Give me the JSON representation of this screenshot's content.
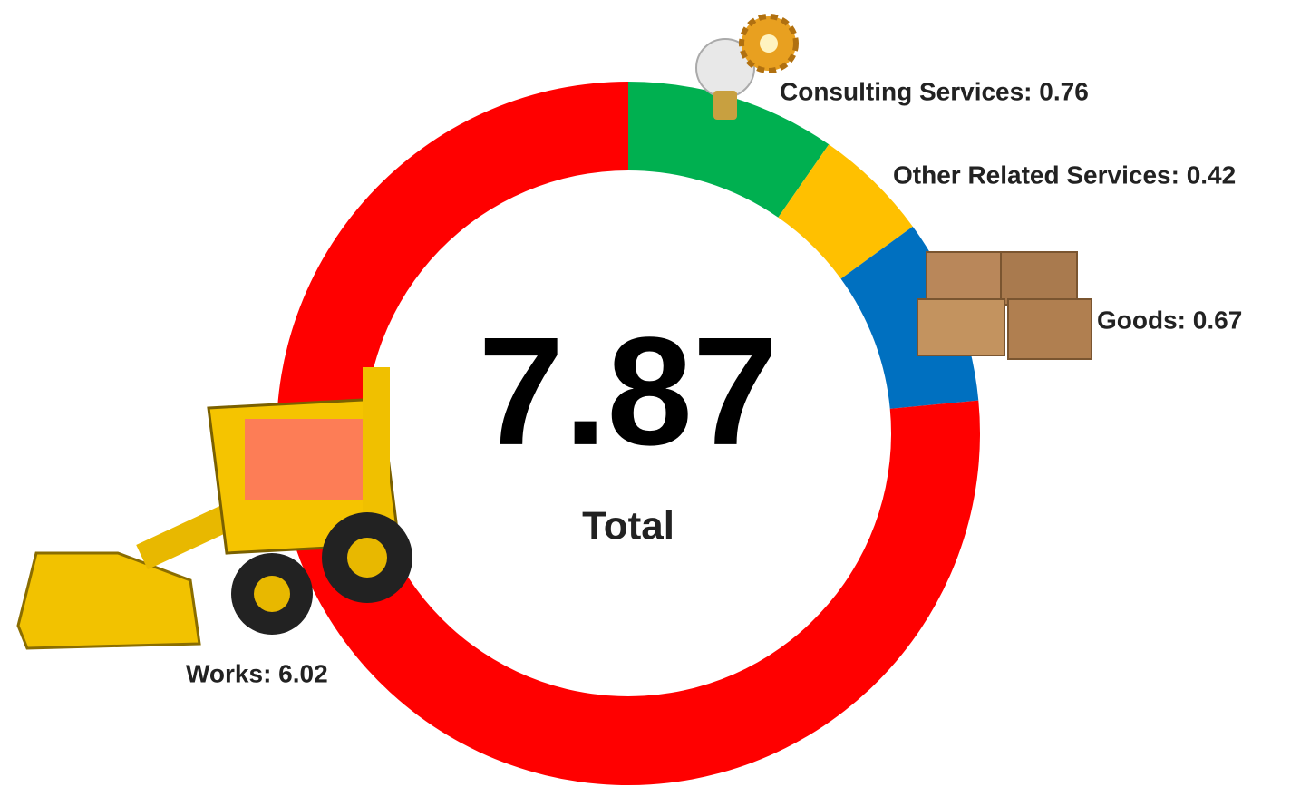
{
  "chart_data": {
    "type": "donut",
    "values": [
      0.76,
      0.42,
      0.67,
      6.02
    ],
    "value_labels": [
      "Consulting Services: 0.76",
      "Other Related Services: 0.42",
      "Goods: 0.67",
      "Works: 6.02"
    ],
    "colors": [
      "#00b050",
      "#ffc000",
      "#0070c0",
      "#ff0000"
    ],
    "center_value": 7.87,
    "center_label": "Total"
  }
}
